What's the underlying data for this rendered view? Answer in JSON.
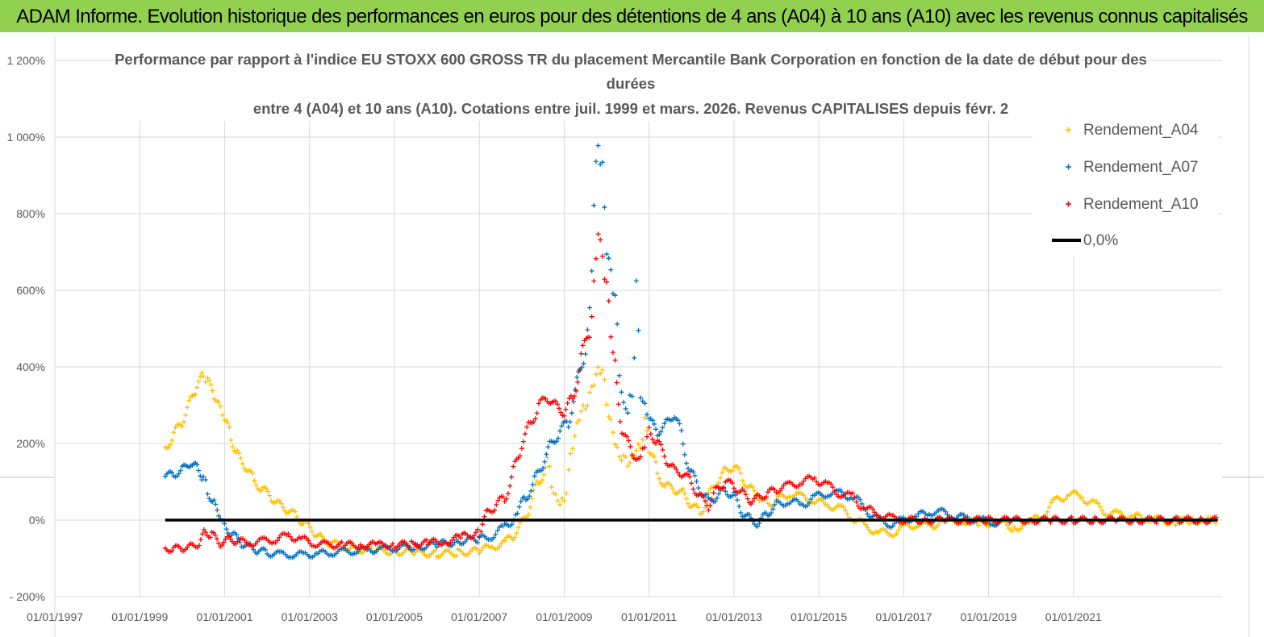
{
  "banner": {
    "title": "ADAM Informe. Evolution historique des performances en euros pour des détentions de 4 ans (A04) à 10 ans (A10) avec les revenus connus capitalisés",
    "background": "#92d050"
  },
  "chart_data": {
    "type": "scatter",
    "title_lines": [
      "Performance par rapport à l'indice EU STOXX 600 GROSS TR  du placement Mercantile Bank Corporation en fonction de la date de début pour des",
      "durées",
      "entre 4 (A04) et 10 ans (A10).  Cotations entre juil. 1999 et mars. 2026. Revenus CAPITALISES depuis févr. 2"
    ],
    "y_range": [
      -200,
      1200
    ],
    "y_unit": "%",
    "y_ticks": [
      "- 200%",
      "0%",
      "200%",
      "400%",
      "600%",
      "800%",
      "1 000%",
      "1 200%"
    ],
    "y_tick_values": [
      -200,
      0,
      200,
      400,
      600,
      800,
      1000,
      1200
    ],
    "x_range": [
      1997.0,
      2024.5
    ],
    "x_ticks": [
      "01/01/1997",
      "01/01/1999",
      "01/01/2001",
      "01/01/2003",
      "01/01/2005",
      "01/01/2007",
      "01/01/2009",
      "01/01/2011",
      "01/01/2013",
      "01/01/2015",
      "01/01/2017",
      "01/01/2019",
      "01/01/2021"
    ],
    "x_tick_values": [
      1997,
      1999,
      2001,
      2003,
      2005,
      2007,
      2009,
      2011,
      2013,
      2015,
      2017,
      2019,
      2021
    ],
    "series": [
      {
        "name": "Rendement_A04",
        "color": "#ffc000",
        "marker": "+",
        "x": [
          1999.6,
          1999.8,
          2000.0,
          2000.2,
          2000.35,
          2000.5,
          2000.6,
          2000.75,
          2000.9,
          2001.0,
          2001.15,
          2001.3,
          2001.5,
          2001.7,
          2001.9,
          2002.1,
          2002.3,
          2002.5,
          2002.7,
          2002.9,
          2003.1,
          2003.3,
          2003.5,
          2003.8,
          2004.0,
          2004.5,
          2005.0,
          2005.5,
          2006.0,
          2006.5,
          2007.0,
          2007.3,
          2007.6,
          2007.8,
          2008.0,
          2008.2,
          2008.4,
          2008.6,
          2008.7,
          2008.8,
          2008.9,
          2009.0,
          2009.1,
          2009.2,
          2009.3,
          2009.4,
          2009.5,
          2009.6,
          2009.7,
          2009.8,
          2009.9,
          2010.0,
          2010.1,
          2010.2,
          2010.3,
          2010.4,
          2010.5,
          2010.6,
          2010.7,
          2010.8,
          2010.9,
          2011.0,
          2011.2,
          2011.4,
          2011.6,
          2011.8,
          2012.0,
          2012.2,
          2012.4,
          2012.6,
          2012.8,
          2013.0,
          2013.2,
          2013.4,
          2013.6,
          2013.8,
          2014.0,
          2014.3,
          2014.6,
          2014.9,
          2015.2,
          2015.5,
          2015.8,
          2016.1,
          2016.4,
          2016.7,
          2017.0,
          2017.3,
          2017.6,
          2018.0,
          2018.4,
          2018.8,
          2019.2,
          2019.6,
          2020.0,
          2020.3,
          2020.6,
          2020.9,
          2021.2,
          2021.5,
          2021.8,
          2022.1,
          2022.4,
          2022.7,
          2023.0,
          2023.4,
          2023.8,
          2024.1,
          2024.4
        ],
        "y": [
          190,
          220,
          260,
          310,
          350,
          380,
          360,
          330,
          290,
          260,
          220,
          170,
          140,
          100,
          80,
          60,
          40,
          25,
          10,
          -10,
          -30,
          -50,
          -60,
          -70,
          -75,
          -80,
          -82,
          -85,
          -88,
          -85,
          -80,
          -70,
          -60,
          -40,
          -10,
          40,
          100,
          150,
          100,
          60,
          40,
          60,
          110,
          200,
          250,
          280,
          300,
          320,
          360,
          400,
          380,
          320,
          250,
          200,
          170,
          160,
          150,
          160,
          180,
          200,
          250,
          190,
          120,
          90,
          80,
          70,
          40,
          20,
          60,
          100,
          130,
          140,
          110,
          80,
          60,
          40,
          50,
          70,
          60,
          50,
          40,
          30,
          10,
          -20,
          -30,
          -35,
          -20,
          -10,
          -15,
          -5,
          0,
          -10,
          -5,
          -20,
          -10,
          20,
          50,
          70,
          60,
          40,
          20,
          15,
          10,
          5,
          0,
          -5,
          0,
          -2,
          0
        ]
      },
      {
        "name": "Rendement_A07",
        "color": "#0070c0",
        "marker": "+",
        "x": [
          1999.6,
          1999.8,
          2000.0,
          2000.2,
          2000.35,
          2000.5,
          2000.6,
          2000.75,
          2000.9,
          2001.0,
          2001.2,
          2001.4,
          2001.6,
          2001.8,
          2002.0,
          2002.3,
          2002.6,
          2002.9,
          2003.2,
          2003.5,
          2003.8,
          2004.1,
          2004.4,
          2004.7,
          2005.0,
          2005.5,
          2006.0,
          2006.5,
          2007.0,
          2007.3,
          2007.6,
          2007.9,
          2008.1,
          2008.3,
          2008.5,
          2008.7,
          2008.9,
          2009.1,
          2009.3,
          2009.5,
          2009.6,
          2009.7,
          2009.8,
          2009.9,
          2010.0,
          2010.1,
          2010.2,
          2010.3,
          2010.4,
          2010.5,
          2010.6,
          2010.7,
          2010.8,
          2010.9,
          2011.0,
          2011.2,
          2011.4,
          2011.6,
          2011.8,
          2012.0,
          2012.2,
          2012.4,
          2012.6,
          2012.8,
          2013.0,
          2013.2,
          2013.4,
          2013.6,
          2013.8,
          2014.0,
          2014.3,
          2014.6,
          2014.9,
          2015.2,
          2015.5,
          2015.8,
          2016.1,
          2016.4,
          2016.7,
          2017.0,
          2017.3,
          2017.6,
          2017.9,
          2018.2,
          2018.5,
          2018.8,
          2019.1,
          2019.3
        ],
        "y": [
          115,
          120,
          130,
          150,
          140,
          110,
          80,
          40,
          10,
          -10,
          -40,
          -60,
          -70,
          -80,
          -85,
          -90,
          -90,
          -90,
          -88,
          -85,
          -83,
          -80,
          -78,
          -75,
          -72,
          -70,
          -65,
          -55,
          -50,
          -40,
          -20,
          20,
          60,
          100,
          150,
          200,
          230,
          260,
          350,
          450,
          550,
          800,
          1000,
          900,
          700,
          660,
          560,
          400,
          300,
          280,
          350,
          580,
          330,
          300,
          260,
          230,
          250,
          280,
          200,
          120,
          80,
          50,
          60,
          80,
          60,
          20,
          0,
          -10,
          20,
          40,
          50,
          40,
          60,
          70,
          70,
          60,
          30,
          0,
          -10,
          0,
          10,
          20,
          20,
          10,
          5,
          0,
          -5,
          -10
        ]
      },
      {
        "name": "Rendement_A10",
        "color": "#ff0000",
        "marker": "+",
        "x": [
          1999.6,
          1999.8,
          2000.0,
          2000.2,
          2000.4,
          2000.55,
          2000.7,
          2000.9,
          2001.1,
          2001.3,
          2001.6,
          2001.9,
          2002.2,
          2002.5,
          2002.8,
          2003.1,
          2003.4,
          2003.8,
          2004.2,
          2004.6,
          2005.0,
          2005.4,
          2005.8,
          2006.2,
          2006.6,
          2007.0,
          2007.2,
          2007.4,
          2007.6,
          2007.8,
          2008.0,
          2008.2,
          2008.4,
          2008.6,
          2008.8,
          2009.0,
          2009.2,
          2009.4,
          2009.6,
          2009.7,
          2009.8,
          2009.9,
          2010.0,
          2010.1,
          2010.2,
          2010.4,
          2010.6,
          2010.8,
          2010.9,
          2011.0,
          2011.2,
          2011.4,
          2011.6,
          2011.8,
          2012.0,
          2012.2,
          2012.4,
          2012.6,
          2012.8,
          2013.0,
          2013.2,
          2013.4,
          2013.6,
          2013.8,
          2014.0,
          2014.3,
          2014.6,
          2014.9,
          2015.2,
          2015.5,
          2015.8,
          2016.1,
          2016.4,
          2016.7,
          2017.0,
          2017.5,
          2018.0,
          2018.5,
          2019.0,
          2019.5,
          2020.0,
          2020.5,
          2021.0,
          2021.5,
          2022.0,
          2022.5,
          2023.0,
          2023.5,
          2024.0,
          2024.4
        ],
        "y": [
          -75,
          -75,
          -73,
          -70,
          -60,
          -30,
          -40,
          -60,
          -50,
          -55,
          -60,
          -55,
          -50,
          -40,
          -50,
          -60,
          -65,
          -65,
          -65,
          -65,
          -65,
          -63,
          -60,
          -55,
          -45,
          -30,
          20,
          40,
          60,
          120,
          200,
          250,
          300,
          320,
          300,
          280,
          320,
          420,
          500,
          600,
          750,
          700,
          600,
          500,
          400,
          220,
          180,
          150,
          200,
          240,
          200,
          160,
          130,
          120,
          100,
          60,
          40,
          80,
          100,
          90,
          70,
          50,
          60,
          70,
          80,
          90,
          100,
          110,
          90,
          70,
          60,
          30,
          15,
          5,
          0,
          0,
          0,
          0,
          0,
          0,
          0,
          0,
          0,
          0,
          0,
          0,
          0,
          0,
          0,
          0
        ]
      },
      {
        "name": "0,0%",
        "color": "#000000",
        "marker": "line",
        "x": [
          1999.6,
          2024.4
        ],
        "y": [
          0,
          0
        ]
      }
    ],
    "legend_position": "top-right",
    "grid": true
  }
}
